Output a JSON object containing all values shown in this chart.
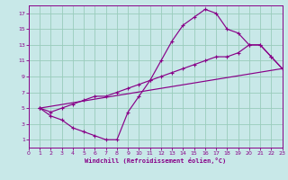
{
  "xlabel": "Windchill (Refroidissement éolien,°C)",
  "bg_color": "#c8e8e8",
  "grid_color": "#99ccbb",
  "line_color": "#880088",
  "xlim": [
    0,
    23
  ],
  "ylim": [
    0,
    18
  ],
  "xticks": [
    0,
    1,
    2,
    3,
    4,
    5,
    6,
    7,
    8,
    9,
    10,
    11,
    12,
    13,
    14,
    15,
    16,
    17,
    18,
    19,
    20,
    21,
    22,
    23
  ],
  "yticks": [
    1,
    3,
    5,
    7,
    9,
    11,
    13,
    15,
    17
  ],
  "curve1_x": [
    1,
    2,
    3,
    4,
    5,
    6,
    7,
    8,
    9,
    10,
    11,
    12,
    13,
    14,
    15,
    16,
    17,
    18,
    19,
    20,
    21,
    22,
    23
  ],
  "curve1_y": [
    5.0,
    4.0,
    3.5,
    2.5,
    2.0,
    1.5,
    1.0,
    1.0,
    4.5,
    6.5,
    8.5,
    11.0,
    13.5,
    15.5,
    16.5,
    17.5,
    17.0,
    15.0,
    14.5,
    13.0,
    13.0,
    11.5,
    10.0
  ],
  "curve2_x": [
    1,
    2,
    3,
    4,
    5,
    6,
    7,
    8,
    9,
    10,
    11,
    12,
    13,
    14,
    15,
    16,
    17,
    18,
    19,
    20,
    21,
    22,
    23
  ],
  "curve2_y": [
    5.0,
    4.5,
    5.0,
    5.5,
    6.0,
    6.5,
    6.5,
    7.0,
    7.5,
    8.0,
    8.5,
    9.0,
    9.5,
    10.0,
    10.5,
    11.0,
    11.5,
    11.5,
    12.0,
    13.0,
    13.0,
    11.5,
    10.0
  ],
  "curve3_x": [
    1,
    23
  ],
  "curve3_y": [
    5.0,
    10.0
  ]
}
